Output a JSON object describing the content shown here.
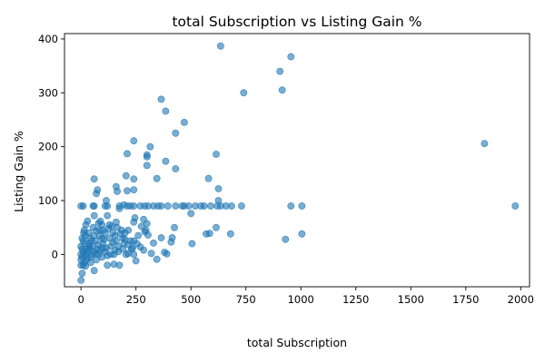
{
  "chart_data": {
    "type": "scatter",
    "title": "total Subscription vs Listing Gain %",
    "xlabel": "total Subscription",
    "ylabel": "Listing Gain %",
    "xlim": [
      -75,
      2040
    ],
    "ylim": [
      -60,
      410
    ],
    "xticks": [
      0,
      250,
      500,
      750,
      1000,
      1250,
      1500,
      1750,
      2000
    ],
    "yticks": [
      0,
      100,
      200,
      300,
      400
    ],
    "grid": false,
    "color": "#1f77b4",
    "points": [
      [
        635,
        387
      ],
      [
        955,
        367
      ],
      [
        905,
        340
      ],
      [
        915,
        305
      ],
      [
        740,
        300
      ],
      [
        365,
        288
      ],
      [
        385,
        266
      ],
      [
        470,
        245
      ],
      [
        430,
        225
      ],
      [
        240,
        211
      ],
      [
        1835,
        206
      ],
      [
        315,
        200
      ],
      [
        210,
        187
      ],
      [
        615,
        186
      ],
      [
        300,
        185
      ],
      [
        300,
        181
      ],
      [
        385,
        173
      ],
      [
        300,
        165
      ],
      [
        430,
        159
      ],
      [
        205,
        146
      ],
      [
        345,
        141
      ],
      [
        580,
        141
      ],
      [
        60,
        140
      ],
      [
        240,
        140
      ],
      [
        160,
        126
      ],
      [
        625,
        122
      ],
      [
        240,
        120
      ],
      [
        75,
        120
      ],
      [
        210,
        118
      ],
      [
        165,
        117
      ],
      [
        70,
        113
      ],
      [
        115,
        100
      ],
      [
        625,
        100
      ],
      [
        195,
        92
      ],
      [
        0,
        90
      ],
      [
        10,
        90
      ],
      [
        55,
        90
      ],
      [
        60,
        90
      ],
      [
        110,
        90
      ],
      [
        120,
        90
      ],
      [
        175,
        90
      ],
      [
        210,
        90
      ],
      [
        225,
        90
      ],
      [
        240,
        90
      ],
      [
        270,
        90
      ],
      [
        290,
        90
      ],
      [
        305,
        90
      ],
      [
        330,
        90
      ],
      [
        350,
        90
      ],
      [
        365,
        90
      ],
      [
        395,
        90
      ],
      [
        430,
        90
      ],
      [
        460,
        90
      ],
      [
        470,
        90
      ],
      [
        490,
        90
      ],
      [
        520,
        90
      ],
      [
        545,
        90
      ],
      [
        560,
        90
      ],
      [
        590,
        90
      ],
      [
        620,
        90
      ],
      [
        635,
        90
      ],
      [
        660,
        90
      ],
      [
        685,
        90
      ],
      [
        730,
        90
      ],
      [
        955,
        90
      ],
      [
        1005,
        90
      ],
      [
        1975,
        90
      ],
      [
        175,
        85
      ],
      [
        500,
        76
      ],
      [
        120,
        72
      ],
      [
        60,
        72
      ],
      [
        245,
        68
      ],
      [
        285,
        65
      ],
      [
        240,
        60
      ],
      [
        160,
        60
      ],
      [
        80,
        58
      ],
      [
        300,
        57
      ],
      [
        95,
        55
      ],
      [
        30,
        62
      ],
      [
        140,
        52
      ],
      [
        615,
        50
      ],
      [
        425,
        50
      ],
      [
        15,
        45
      ],
      [
        70,
        44
      ],
      [
        200,
        40
      ],
      [
        290,
        42
      ],
      [
        110,
        40
      ],
      [
        570,
        38
      ],
      [
        680,
        38
      ],
      [
        1005,
        38
      ],
      [
        585,
        39
      ],
      [
        305,
        36
      ],
      [
        415,
        31
      ],
      [
        365,
        31
      ],
      [
        930,
        28
      ],
      [
        240,
        25
      ],
      [
        160,
        25
      ],
      [
        410,
        23
      ],
      [
        330,
        21
      ],
      [
        505,
        20
      ],
      [
        215,
        18
      ],
      [
        270,
        14
      ],
      [
        115,
        12
      ],
      [
        40,
        10
      ],
      [
        90,
        8
      ],
      [
        60,
        5
      ],
      [
        10,
        5
      ],
      [
        380,
        4
      ],
      [
        390,
        1
      ],
      [
        150,
        0
      ],
      [
        205,
        0
      ],
      [
        240,
        0
      ],
      [
        320,
        2
      ],
      [
        20,
        0
      ],
      [
        80,
        0
      ],
      [
        120,
        -2
      ],
      [
        45,
        -5
      ],
      [
        345,
        -9
      ],
      [
        250,
        -12
      ],
      [
        150,
        -18
      ],
      [
        120,
        -20
      ],
      [
        175,
        -20
      ],
      [
        0,
        -20
      ],
      [
        20,
        -22
      ],
      [
        60,
        -30
      ],
      [
        5,
        -35
      ],
      [
        0,
        -48
      ],
      [
        5,
        30
      ],
      [
        20,
        35
      ],
      [
        35,
        20
      ],
      [
        50,
        15
      ],
      [
        65,
        25
      ],
      [
        85,
        35
      ],
      [
        100,
        20
      ],
      [
        130,
        30
      ],
      [
        145,
        40
      ],
      [
        170,
        15
      ],
      [
        185,
        45
      ],
      [
        190,
        30
      ],
      [
        225,
        25
      ],
      [
        260,
        35
      ],
      [
        55,
        50
      ],
      [
        35,
        40
      ],
      [
        85,
        45
      ],
      [
        130,
        55
      ],
      [
        165,
        50
      ],
      [
        215,
        45
      ],
      [
        10,
        25
      ],
      [
        25,
        10
      ],
      [
        40,
        30
      ],
      [
        75,
        10
      ],
      [
        95,
        30
      ],
      [
        110,
        5
      ],
      [
        135,
        15
      ],
      [
        155,
        35
      ],
      [
        170,
        5
      ],
      [
        195,
        20
      ],
      [
        230,
        10
      ],
      [
        25,
        -10
      ],
      [
        45,
        -15
      ],
      [
        70,
        -10
      ],
      [
        95,
        -5
      ],
      [
        15,
        -15
      ],
      [
        5,
        -5
      ],
      [
        30,
        5
      ],
      [
        50,
        0
      ],
      [
        100,
        45
      ],
      [
        0,
        15
      ],
      [
        0,
        0
      ],
      [
        0,
        -10
      ],
      [
        5,
        10
      ],
      [
        10,
        -20
      ],
      [
        12,
        40
      ],
      [
        18,
        20
      ],
      [
        22,
        55
      ],
      [
        28,
        -5
      ],
      [
        38,
        15
      ],
      [
        48,
        25
      ],
      [
        58,
        35
      ],
      [
        68,
        2
      ],
      [
        78,
        18
      ],
      [
        88,
        62
      ],
      [
        98,
        12
      ],
      [
        105,
        28
      ],
      [
        125,
        48
      ],
      [
        135,
        0
      ],
      [
        145,
        22
      ],
      [
        155,
        8
      ],
      [
        180,
        38
      ],
      [
        190,
        10
      ],
      [
        200,
        28
      ],
      [
        215,
        2
      ],
      [
        235,
        12
      ],
      [
        255,
        20
      ],
      [
        275,
        52
      ],
      [
        285,
        8
      ],
      [
        295,
        45
      ]
    ]
  }
}
